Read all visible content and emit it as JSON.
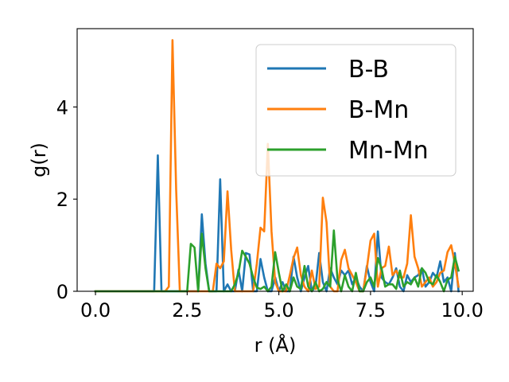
{
  "chart_data": {
    "type": "line",
    "title": "",
    "xlabel": "r (Å)",
    "ylabel": "g(r)",
    "xlim": [
      -0.5,
      10.3
    ],
    "ylim": [
      0,
      5.7
    ],
    "xticks": [
      0.0,
      2.5,
      5.0,
      7.5,
      10.0
    ],
    "xtick_labels": [
      "0.0",
      "2.5",
      "5.0",
      "7.5",
      "10.0"
    ],
    "yticks": [
      0,
      2,
      4
    ],
    "ytick_labels": [
      "0",
      "2",
      "4"
    ],
    "grid": false,
    "legend_position": "top-right",
    "series": [
      {
        "name": "B-B",
        "color": "#1f77b4",
        "x": [
          0,
          1.6,
          1.7,
          1.8,
          2.8,
          2.9,
          3.0,
          3.1,
          3.3,
          3.4,
          3.5,
          3.6,
          3.7,
          3.8,
          3.9,
          4.0,
          4.1,
          4.2,
          4.3,
          4.4,
          4.5,
          4.6,
          4.7,
          4.8,
          4.9,
          5.0,
          5.1,
          5.2,
          5.3,
          5.4,
          5.5,
          5.6,
          5.7,
          5.8,
          5.9,
          6.0,
          6.1,
          6.2,
          6.3,
          6.4,
          6.5,
          6.6,
          6.7,
          6.8,
          6.9,
          7.0,
          7.1,
          7.2,
          7.3,
          7.4,
          7.5,
          7.6,
          7.7,
          7.8,
          7.9,
          8.0,
          8.1,
          8.2,
          8.3,
          8.4,
          8.5,
          8.6,
          8.7,
          8.8,
          8.9,
          9.0,
          9.1,
          9.2,
          9.3,
          9.4,
          9.5,
          9.6,
          9.7,
          9.8,
          9.9
        ],
        "y": [
          0,
          0,
          2.95,
          0,
          0,
          1.67,
          0.6,
          0,
          0,
          2.43,
          0,
          0.15,
          0,
          0,
          0.47,
          0,
          0.83,
          0.8,
          0,
          0,
          0.7,
          0.3,
          0,
          0,
          0.3,
          0,
          0.2,
          0,
          0,
          0.75,
          0.3,
          0,
          0.3,
          0.55,
          0,
          0.1,
          0.83,
          0.2,
          0,
          0.5,
          0.3,
          0.15,
          0.45,
          0.35,
          0.45,
          0.15,
          0.3,
          0.1,
          0,
          0.55,
          0.2,
          0,
          1.3,
          0.3,
          0.2,
          0.15,
          0.3,
          0.5,
          0.1,
          0,
          0.35,
          0.2,
          0.3,
          0.35,
          0.5,
          0.1,
          0.2,
          0.4,
          0.3,
          0.65,
          0.2,
          0.3,
          0,
          0.83,
          0
        ]
      },
      {
        "name": "B-Mn",
        "color": "#ff7f0e",
        "x": [
          0,
          1.9,
          2.0,
          2.1,
          2.2,
          2.3,
          3.2,
          3.3,
          3.4,
          3.5,
          3.6,
          3.7,
          3.8,
          4.2,
          4.3,
          4.4,
          4.5,
          4.6,
          4.7,
          4.8,
          4.9,
          5.0,
          5.1,
          5.2,
          5.3,
          5.4,
          5.5,
          5.6,
          5.7,
          5.8,
          5.9,
          6.0,
          6.1,
          6.2,
          6.3,
          6.4,
          6.5,
          6.6,
          6.7,
          6.8,
          6.9,
          7.0,
          7.1,
          7.2,
          7.3,
          7.4,
          7.5,
          7.6,
          7.7,
          7.8,
          7.9,
          8.0,
          8.1,
          8.2,
          8.3,
          8.4,
          8.5,
          8.6,
          8.7,
          8.8,
          8.9,
          9.0,
          9.1,
          9.2,
          9.3,
          9.4,
          9.5,
          9.6,
          9.7,
          9.8,
          9.9
        ],
        "y": [
          0,
          0,
          0.1,
          5.45,
          2.2,
          0,
          0,
          0.6,
          0.5,
          0.65,
          2.17,
          0.9,
          0,
          0,
          0,
          0.6,
          1.38,
          1.3,
          3.2,
          1.3,
          0.2,
          0,
          0,
          0,
          0.35,
          0.72,
          0.95,
          0.35,
          0.1,
          0,
          0.45,
          0.05,
          0.1,
          2.03,
          1.5,
          0.1,
          0,
          0,
          0.68,
          0.9,
          0.5,
          0.35,
          0.2,
          0,
          0,
          0.5,
          1.1,
          1.25,
          0.1,
          0.5,
          0.55,
          0.97,
          0.35,
          0.45,
          0.3,
          0.3,
          0.6,
          1.65,
          0.75,
          0.5,
          0.1,
          0.2,
          0.3,
          0.1,
          0.2,
          0.4,
          0.45,
          0.85,
          1.0,
          0.6,
          0.1
        ]
      },
      {
        "name": "Mn-Mn",
        "color": "#2ca02c",
        "x": [
          0,
          2.3,
          2.4,
          2.5,
          2.6,
          2.7,
          2.8,
          2.9,
          3.0,
          3.1,
          3.6,
          3.7,
          3.8,
          3.9,
          4.0,
          4.1,
          4.2,
          4.3,
          4.4,
          4.5,
          4.6,
          4.7,
          4.8,
          4.9,
          5.0,
          5.1,
          5.2,
          5.3,
          5.4,
          5.5,
          5.6,
          5.7,
          5.8,
          5.9,
          6.0,
          6.1,
          6.2,
          6.3,
          6.4,
          6.5,
          6.6,
          6.7,
          6.8,
          6.9,
          7.0,
          7.1,
          7.2,
          7.3,
          7.4,
          7.5,
          7.6,
          7.7,
          7.8,
          7.9,
          8.0,
          8.1,
          8.2,
          8.3,
          8.4,
          8.5,
          8.6,
          8.7,
          8.8,
          8.9,
          9.0,
          9.1,
          9.2,
          9.3,
          9.4,
          9.5,
          9.6,
          9.7,
          9.8,
          9.9
        ],
        "y": [
          0,
          0,
          0,
          0,
          1.03,
          0.95,
          0,
          1.25,
          0.5,
          0,
          0,
          0,
          0.15,
          0.4,
          0.88,
          0.75,
          0.6,
          0.3,
          0.08,
          0.05,
          0.1,
          0,
          0.1,
          0.85,
          0.4,
          0,
          0.15,
          0,
          0.3,
          0.1,
          0.05,
          0.55,
          0.1,
          0,
          0.2,
          0,
          0.05,
          0.2,
          0.1,
          1.32,
          0.25,
          0,
          0.35,
          0.1,
          0,
          0.4,
          0,
          0,
          0.2,
          0.3,
          0.1,
          0.72,
          0.5,
          0.1,
          0.15,
          0.15,
          0.05,
          0.45,
          0.1,
          0.2,
          0.15,
          0.3,
          0.1,
          0.5,
          0.4,
          0.2,
          0.15,
          0.35,
          0.2,
          0,
          0.25,
          0.3,
          0.75,
          0.45
        ]
      }
    ]
  }
}
